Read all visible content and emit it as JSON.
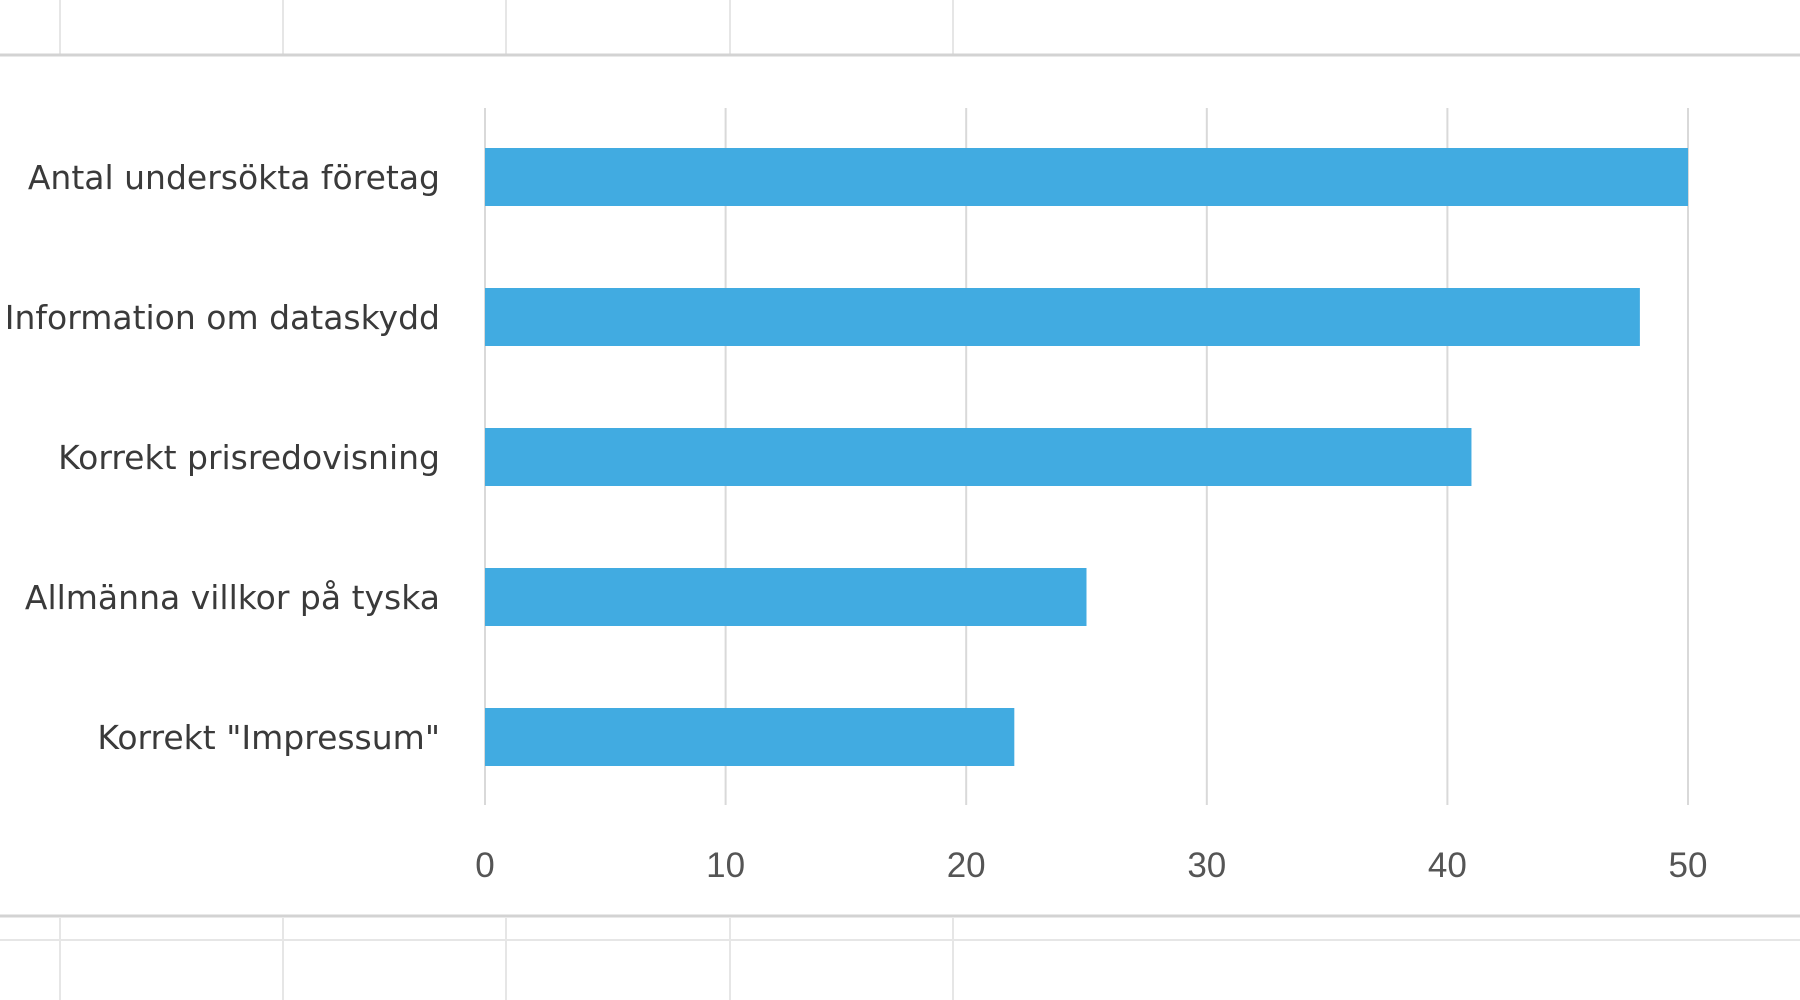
{
  "chart_data": {
    "type": "bar",
    "orientation": "horizontal",
    "categories": [
      "Antal undersökta företag",
      "Information om dataskydd",
      "Korrekt prisredovisning",
      "Allmänna villkor på tyska",
      "Korrekt \"Impressum\""
    ],
    "values": [
      50,
      48,
      41,
      25,
      22
    ],
    "xlim": [
      0,
      50
    ],
    "xticks": [
      "0",
      "10",
      "20",
      "30",
      "40",
      "50"
    ],
    "grid": true,
    "title": "",
    "xlabel": "",
    "ylabel": ""
  },
  "colors": {
    "bar": "#41ABE1",
    "gridline": "#D9D9D9",
    "cell_border": "#E6E6E6",
    "chart_border": "#D3D3D3"
  }
}
